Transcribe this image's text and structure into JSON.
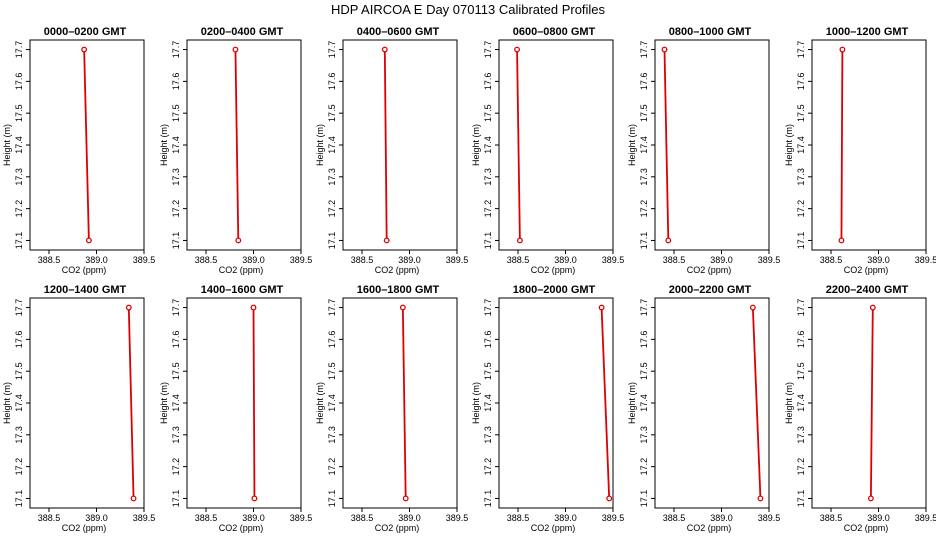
{
  "title": "HDP AIRCOA E  Day 070113  Calibrated Profiles",
  "colors": {
    "profile": "#dd0000",
    "axis": "#000000",
    "background": "#ffffff"
  },
  "chart_data": {
    "type": "line",
    "layout": "2x6 small multiples",
    "xlabel": "CO2 (ppm)",
    "ylabel": "Height (m)",
    "xlim": [
      388.3,
      389.5
    ],
    "ylim": [
      17.07,
      17.73
    ],
    "xticks": [
      "388.5",
      "389.0",
      "389.5"
    ],
    "yticks": [
      "17.1",
      "17.2",
      "17.3",
      "17.4",
      "17.5",
      "17.6",
      "17.7"
    ],
    "xtick_values": [
      388.5,
      389.0,
      389.5
    ],
    "ytick_values": [
      17.1,
      17.2,
      17.3,
      17.4,
      17.5,
      17.6,
      17.7
    ],
    "panels": [
      {
        "title": "0000–0200 GMT",
        "points": [
          {
            "x": 388.92,
            "y": 17.1
          },
          {
            "x": 388.87,
            "y": 17.7
          }
        ]
      },
      {
        "title": "0200–0400 GMT",
        "points": [
          {
            "x": 388.84,
            "y": 17.1
          },
          {
            "x": 388.81,
            "y": 17.7
          }
        ]
      },
      {
        "title": "0400–0600 GMT",
        "points": [
          {
            "x": 388.76,
            "y": 17.1
          },
          {
            "x": 388.74,
            "y": 17.7
          }
        ]
      },
      {
        "title": "0600–0800 GMT",
        "points": [
          {
            "x": 388.52,
            "y": 17.1
          },
          {
            "x": 388.49,
            "y": 17.7
          }
        ]
      },
      {
        "title": "0800–1000 GMT",
        "points": [
          {
            "x": 388.44,
            "y": 17.1
          },
          {
            "x": 388.4,
            "y": 17.7
          }
        ]
      },
      {
        "title": "1000–1200 GMT",
        "points": [
          {
            "x": 388.61,
            "y": 17.1
          },
          {
            "x": 388.62,
            "y": 17.7
          }
        ]
      },
      {
        "title": "1200–1400 GMT",
        "points": [
          {
            "x": 389.39,
            "y": 17.1
          },
          {
            "x": 389.34,
            "y": 17.7
          }
        ]
      },
      {
        "title": "1400–1600 GMT",
        "points": [
          {
            "x": 389.01,
            "y": 17.1
          },
          {
            "x": 389.0,
            "y": 17.7
          }
        ]
      },
      {
        "title": "1600–1800 GMT",
        "points": [
          {
            "x": 388.96,
            "y": 17.1
          },
          {
            "x": 388.93,
            "y": 17.7
          }
        ]
      },
      {
        "title": "1800–2000 GMT",
        "points": [
          {
            "x": 389.46,
            "y": 17.1
          },
          {
            "x": 389.38,
            "y": 17.7
          }
        ]
      },
      {
        "title": "2000–2200 GMT",
        "points": [
          {
            "x": 389.41,
            "y": 17.1
          },
          {
            "x": 389.33,
            "y": 17.7
          }
        ]
      },
      {
        "title": "2200–2400 GMT",
        "points": [
          {
            "x": 388.92,
            "y": 17.1
          },
          {
            "x": 388.94,
            "y": 17.7
          }
        ]
      }
    ]
  }
}
